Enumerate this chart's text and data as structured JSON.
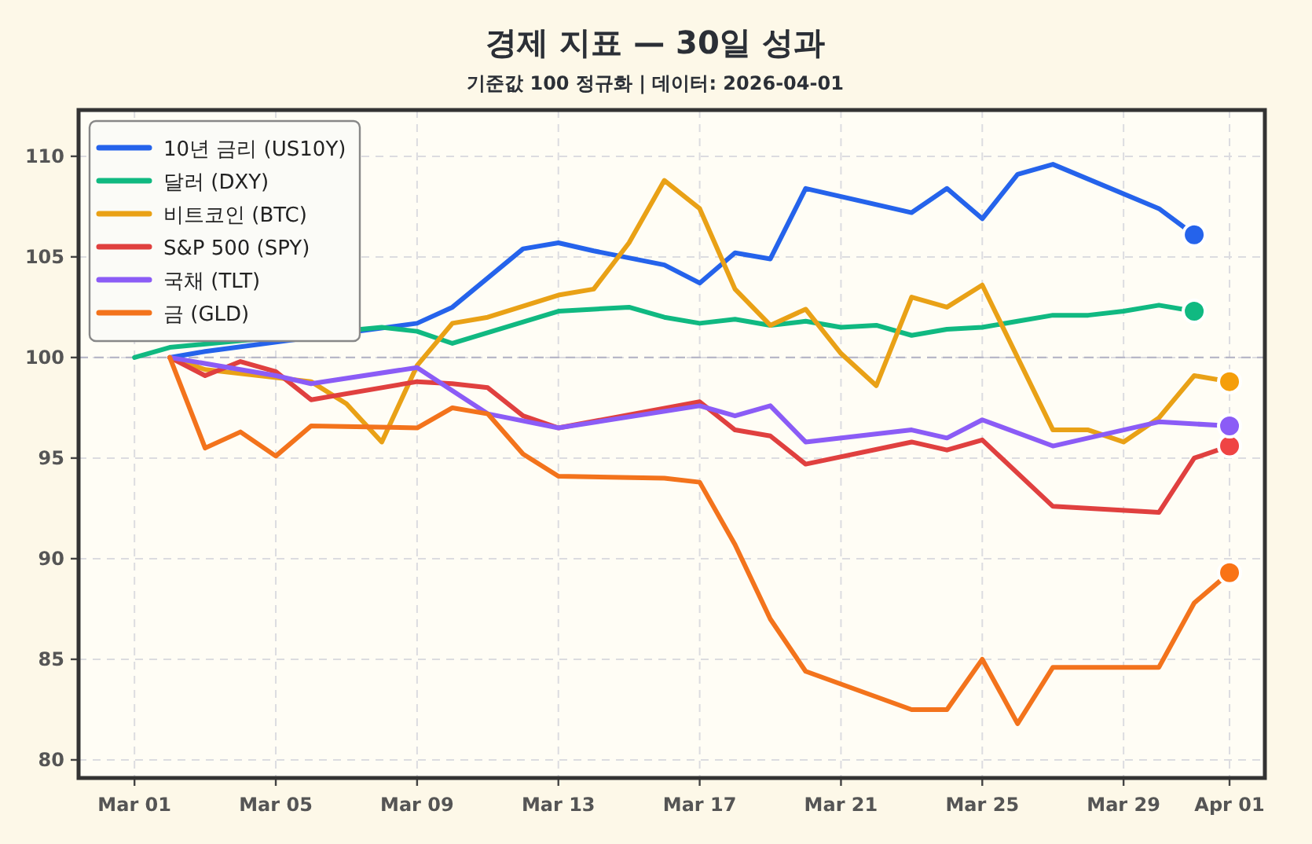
{
  "chart_data": {
    "type": "line",
    "title": "경제 지표 — 30일 성과",
    "subtitle": "기준값 100 정규화 | 데이터: 2026-04-01",
    "xlim": [
      "2026-02-27T10:00",
      "2026-04-02T00:00"
    ],
    "ylim": [
      79.1,
      112.3
    ],
    "xticks": [
      {
        "value": "2026-03-01",
        "label": "Mar 01"
      },
      {
        "value": "2026-03-05",
        "label": "Mar 05"
      },
      {
        "value": "2026-03-09",
        "label": "Mar 09"
      },
      {
        "value": "2026-03-13",
        "label": "Mar 13"
      },
      {
        "value": "2026-03-17",
        "label": "Mar 17"
      },
      {
        "value": "2026-03-21",
        "label": "Mar 21"
      },
      {
        "value": "2026-03-25",
        "label": "Mar 25"
      },
      {
        "value": "2026-03-29",
        "label": "Mar 29"
      },
      {
        "value": "2026-04-01",
        "label": "Apr 01"
      }
    ],
    "yticks": [
      80,
      85,
      90,
      95,
      100,
      105,
      110
    ],
    "grid": true,
    "legend": "top left",
    "ref_lines": [
      {
        "axis": "y",
        "value": 100,
        "color": "#b8b8c8",
        "line_style": "dashed"
      }
    ],
    "series": [
      {
        "name": "10년 금리 (US10Y)",
        "color": "#2563eb",
        "x": [
          "2026-03-02",
          "2026-03-03",
          "2026-03-09",
          "2026-03-10",
          "2026-03-12",
          "2026-03-13",
          "2026-03-14",
          "2026-03-16",
          "2026-03-17",
          "2026-03-18",
          "2026-03-19",
          "2026-03-20",
          "2026-03-23",
          "2026-03-24",
          "2026-03-25",
          "2026-03-26",
          "2026-03-27",
          "2026-03-30",
          "2026-03-31"
        ],
        "values": [
          100,
          100.3,
          101.7,
          102.5,
          105.4,
          105.7,
          105.3,
          104.6,
          103.7,
          105.2,
          104.9,
          108.4,
          107.2,
          108.4,
          106.9,
          109.1,
          109.6,
          107.4,
          106.1
        ]
      },
      {
        "name": "달러 (DXY)",
        "color": "#10b981",
        "x": [
          "2026-03-01",
          "2026-03-02",
          "2026-03-08",
          "2026-03-09",
          "2026-03-10",
          "2026-03-13",
          "2026-03-14",
          "2026-03-15",
          "2026-03-16",
          "2026-03-17",
          "2026-03-18",
          "2026-03-19",
          "2026-03-20",
          "2026-03-21",
          "2026-03-22",
          "2026-03-23",
          "2026-03-24",
          "2026-03-25",
          "2026-03-26",
          "2026-03-27",
          "2026-03-28",
          "2026-03-29",
          "2026-03-30",
          "2026-03-31"
        ],
        "values": [
          100,
          100.5,
          101.5,
          101.3,
          100.7,
          102.3,
          102.4,
          102.5,
          102.0,
          101.7,
          101.9,
          101.6,
          101.8,
          101.5,
          101.6,
          101.1,
          101.4,
          101.5,
          101.8,
          102.1,
          102.1,
          102.3,
          102.6,
          102.3
        ]
      },
      {
        "name": "비트코인 (BTC)",
        "color": "#e9a116",
        "x": [
          "2026-03-02",
          "2026-03-03",
          "2026-03-06",
          "2026-03-07",
          "2026-03-08",
          "2026-03-09",
          "2026-03-10",
          "2026-03-11",
          "2026-03-13",
          "2026-03-14",
          "2026-03-15",
          "2026-03-16",
          "2026-03-17",
          "2026-03-18",
          "2026-03-19",
          "2026-03-20",
          "2026-03-21",
          "2026-03-22",
          "2026-03-23",
          "2026-03-24",
          "2026-03-25",
          "2026-03-27",
          "2026-03-28",
          "2026-03-29",
          "2026-03-30",
          "2026-03-31",
          "2026-04-01"
        ],
        "values": [
          100,
          99.4,
          98.8,
          97.7,
          95.8,
          99.6,
          101.7,
          102.0,
          103.1,
          103.4,
          105.7,
          108.8,
          107.4,
          103.4,
          101.6,
          102.4,
          100.2,
          98.6,
          103.0,
          102.5,
          103.6,
          96.4,
          96.4,
          95.8,
          97.0,
          99.1,
          98.8
        ]
      },
      {
        "name": "S&P 500 (SPY)",
        "color": "#e0403f",
        "x": [
          "2026-03-02",
          "2026-03-03",
          "2026-03-04",
          "2026-03-05",
          "2026-03-06",
          "2026-03-09",
          "2026-03-10",
          "2026-03-11",
          "2026-03-12",
          "2026-03-13",
          "2026-03-17",
          "2026-03-18",
          "2026-03-19",
          "2026-03-20",
          "2026-03-23",
          "2026-03-24",
          "2026-03-25",
          "2026-03-27",
          "2026-03-30",
          "2026-03-31",
          "2026-04-01"
        ],
        "values": [
          100,
          99.1,
          99.8,
          99.3,
          97.9,
          98.8,
          98.7,
          98.5,
          97.1,
          96.5,
          97.8,
          96.4,
          96.1,
          94.7,
          95.8,
          95.4,
          95.9,
          92.6,
          92.3,
          95.0,
          95.6
        ]
      },
      {
        "name": "국채 (TLT)",
        "color": "#8b5cf6",
        "x": [
          "2026-03-02",
          "2026-03-05",
          "2026-03-06",
          "2026-03-09",
          "2026-03-11",
          "2026-03-13",
          "2026-03-17",
          "2026-03-18",
          "2026-03-19",
          "2026-03-20",
          "2026-03-23",
          "2026-03-24",
          "2026-03-25",
          "2026-03-27",
          "2026-03-30",
          "2026-04-01"
        ],
        "values": [
          100,
          99.1,
          98.7,
          99.5,
          97.2,
          96.5,
          97.6,
          97.1,
          97.6,
          95.8,
          96.4,
          96.0,
          96.9,
          95.6,
          96.8,
          96.6
        ]
      },
      {
        "name": "금 (GLD)",
        "color": "#f3731c",
        "x": [
          "2026-03-02",
          "2026-03-03",
          "2026-03-04",
          "2026-03-05",
          "2026-03-06",
          "2026-03-09",
          "2026-03-10",
          "2026-03-11",
          "2026-03-12",
          "2026-03-13",
          "2026-03-16",
          "2026-03-17",
          "2026-03-18",
          "2026-03-19",
          "2026-03-20",
          "2026-03-23",
          "2026-03-24",
          "2026-03-25",
          "2026-03-26",
          "2026-03-27",
          "2026-03-30",
          "2026-03-31",
          "2026-04-01"
        ],
        "values": [
          100,
          95.5,
          96.3,
          95.1,
          96.6,
          96.5,
          97.5,
          97.2,
          95.2,
          94.1,
          94.0,
          93.8,
          90.7,
          87.0,
          84.4,
          82.5,
          82.5,
          85.0,
          81.8,
          84.6,
          84.6,
          87.8,
          89.3
        ]
      },
      {
        "type": "scatter",
        "color": "#2563eb",
        "x": [
          "2026-03-31"
        ],
        "values": [
          106.1
        ]
      },
      {
        "type": "scatter",
        "color": "#10b981",
        "x": [
          "2026-03-31"
        ],
        "values": [
          102.3
        ]
      },
      {
        "type": "scatter",
        "color": "#f59e0b",
        "x": [
          "2026-04-01"
        ],
        "values": [
          98.8
        ]
      },
      {
        "type": "scatter",
        "color": "#ef4444",
        "x": [
          "2026-04-01"
        ],
        "values": [
          95.6
        ]
      },
      {
        "type": "scatter",
        "color": "#8b5cf6",
        "x": [
          "2026-04-01"
        ],
        "values": [
          96.6
        ]
      },
      {
        "type": "scatter",
        "color": "#f97316",
        "x": [
          "2026-04-01"
        ],
        "values": [
          89.3
        ]
      }
    ]
  }
}
